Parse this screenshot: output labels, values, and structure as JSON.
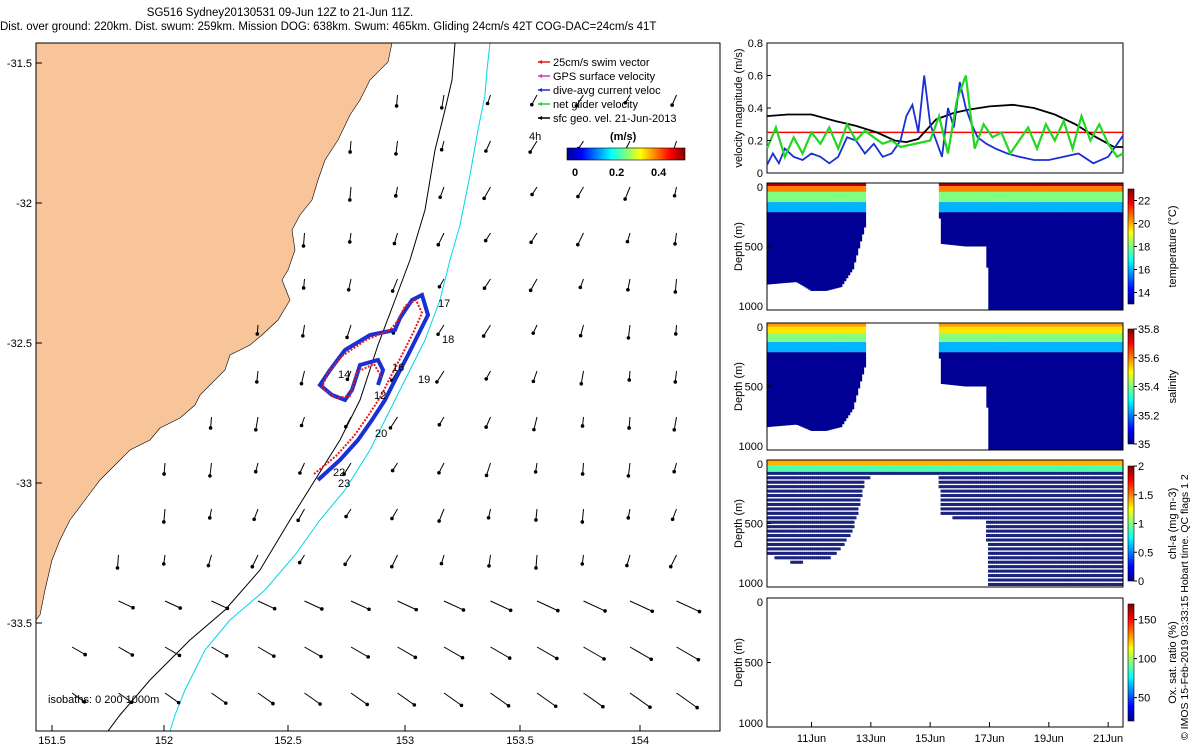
{
  "header": {
    "title_line1": "SG516 Sydney20130531 09-Jun 12Z to 21-Jun 11Z.",
    "title_line2": "Dist. over ground: 220km. Dist. swum: 259km. Mission DOG: 638km. Swum: 465km. Gliding 24cm/s 42T COG-DAC=24cm/s 41T"
  },
  "credit": "© IMOS 15-Feb-2019 03:33:15 Hobart time. QC flags 1  2",
  "map": {
    "legend": [
      {
        "label": "25cm/s swim vector",
        "color": "#e8191b"
      },
      {
        "label": "GPS surface velocity",
        "color": "#d733d7"
      },
      {
        "label": "dive-avg current veloc",
        "color": "#1a2fd4"
      },
      {
        "label": "net glider velocity",
        "color": "#22d622"
      },
      {
        "label": "sfc geo. vel. 21-Jun-2013",
        "color": "#000000"
      }
    ],
    "tag_4h": "4h",
    "colorbar": {
      "unit": "(m/s)",
      "ticks": [
        "0",
        "0.2",
        "0.4"
      ]
    },
    "isobaths_label": "isobaths: 0   200  1000m",
    "x_ticks": [
      "151.5",
      "152",
      "152.5",
      "153",
      "153.5",
      "154"
    ],
    "y_ticks": [
      "-31.5",
      "-32",
      "-32.5",
      "-33",
      "-33.5"
    ],
    "day_labels": [
      "12",
      "14",
      "16",
      "17",
      "18",
      "19",
      "20",
      "22",
      "23"
    ],
    "colors": {
      "land": "#f8c59a",
      "coast_200m": "#000000",
      "isobath_1000m": "#00d8e8",
      "track_blue": "#1a2fd4",
      "track_red": "#e8191b"
    }
  },
  "chart_data": [
    {
      "type": "line",
      "title": "",
      "ylabel": "velocity magnitude (m/s)",
      "ylim": [
        0,
        0.8
      ],
      "yticks": [
        "0",
        "0.2",
        "0.4",
        "0.6",
        "0.8"
      ],
      "xlim": [
        9.5,
        21.5
      ],
      "reference_line": 0.25,
      "series": [
        {
          "color": "#000000",
          "x": [
            9.5,
            10.2,
            11,
            11.8,
            12.5,
            13.2,
            13.8,
            14.2,
            14.6,
            15.2,
            15.8,
            16.3,
            17,
            17.8,
            18.5,
            19.2,
            19.9,
            20.6,
            21.2,
            21.5
          ],
          "y": [
            0.35,
            0.36,
            0.36,
            0.32,
            0.29,
            0.25,
            0.2,
            0.19,
            0.21,
            0.33,
            0.37,
            0.39,
            0.41,
            0.42,
            0.4,
            0.36,
            0.3,
            0.22,
            0.16,
            0.16
          ]
        },
        {
          "color": "#1a2fd4",
          "x": [
            9.5,
            9.7,
            9.9,
            10.1,
            10.4,
            10.7,
            11,
            11.3,
            11.6,
            11.9,
            12.2,
            12.5,
            12.8,
            13.1,
            13.4,
            13.7,
            14,
            14.2,
            14.4,
            14.6,
            14.8,
            15,
            15.2,
            15.4,
            15.6,
            15.8,
            16,
            16.2,
            16.4,
            16.6,
            16.9,
            17.2,
            17.6,
            18,
            18.5,
            19,
            19.5,
            20,
            20.5,
            21,
            21.5
          ],
          "y": [
            0.05,
            0.12,
            0.06,
            0.15,
            0.1,
            0.08,
            0.12,
            0.1,
            0.06,
            0.1,
            0.22,
            0.2,
            0.12,
            0.18,
            0.1,
            0.12,
            0.2,
            0.35,
            0.42,
            0.25,
            0.6,
            0.3,
            0.2,
            0.1,
            0.4,
            0.28,
            0.56,
            0.4,
            0.3,
            0.22,
            0.18,
            0.15,
            0.12,
            0.1,
            0.08,
            0.08,
            0.1,
            0.12,
            0.06,
            0.1,
            0.23
          ]
        },
        {
          "color": "#22d622",
          "x": [
            9.5,
            9.8,
            10.1,
            10.4,
            10.7,
            11,
            11.3,
            11.6,
            11.9,
            12.2,
            12.5,
            12.8,
            13.1,
            13.4,
            13.7,
            14,
            15,
            15.3,
            15.6,
            15.9,
            16.2,
            16.5,
            16.8,
            17.1,
            17.4,
            17.7,
            18,
            18.3,
            18.6,
            18.9,
            19.2,
            19.5,
            19.8,
            20.1,
            20.4,
            20.7,
            21,
            21.3,
            21.5
          ],
          "y": [
            0.15,
            0.28,
            0.1,
            0.22,
            0.12,
            0.25,
            0.18,
            0.28,
            0.15,
            0.3,
            0.2,
            0.26,
            0.22,
            0.18,
            0.2,
            0.16,
            0.2,
            0.35,
            0.12,
            0.45,
            0.6,
            0.15,
            0.3,
            0.22,
            0.25,
            0.12,
            0.2,
            0.28,
            0.15,
            0.3,
            0.2,
            0.32,
            0.15,
            0.35,
            0.2,
            0.3,
            0.18,
            0.1,
            0.12
          ]
        }
      ]
    },
    {
      "type": "heatmap",
      "ylabel": "Depth (m)",
      "ylim": [
        1000,
        0
      ],
      "yticks": [
        "0",
        "500",
        "1000"
      ],
      "colorbar_label": "temperature (°C)",
      "colorbar_range": [
        13,
        23
      ],
      "colorbar_ticks": [
        "14",
        "16",
        "18",
        "20",
        "22"
      ],
      "surface_value": 22.5,
      "max_depth": [
        [
          9.5,
          800
        ],
        [
          10.5,
          780
        ],
        [
          11,
          850
        ],
        [
          11.5,
          850
        ],
        [
          12,
          820
        ],
        [
          12.4,
          680
        ],
        [
          12.8,
          350
        ],
        [
          13.1,
          180
        ],
        [
          15.3,
          180
        ],
        [
          15.4,
          480
        ],
        [
          16.2,
          500
        ],
        [
          16.9,
          500
        ],
        [
          17,
          1000
        ],
        [
          21.5,
          1000
        ]
      ],
      "no_data": [
        [
          12.8,
          15.3
        ]
      ]
    },
    {
      "type": "heatmap",
      "ylabel": "Depth (m)",
      "ylim": [
        1000,
        0
      ],
      "yticks": [
        "0",
        "500",
        "1000"
      ],
      "colorbar_label": "salinity",
      "colorbar_range": [
        35.0,
        35.8
      ],
      "colorbar_ticks": [
        "35",
        "35.2",
        "35.4",
        "35.6",
        "35.8"
      ],
      "surface_value": 35.6,
      "max_depth": [
        [
          9.5,
          820
        ],
        [
          10.5,
          800
        ],
        [
          11,
          850
        ],
        [
          11.5,
          850
        ],
        [
          12,
          820
        ],
        [
          12.4,
          680
        ],
        [
          12.8,
          350
        ],
        [
          13.1,
          180
        ],
        [
          15.3,
          180
        ],
        [
          15.4,
          480
        ],
        [
          16.2,
          500
        ],
        [
          16.9,
          500
        ],
        [
          17,
          1000
        ],
        [
          21.5,
          1000
        ]
      ],
      "no_data": [
        [
          12.8,
          15.3
        ]
      ]
    },
    {
      "type": "scatter",
      "ylabel": "Depth (m)",
      "ylim": [
        1000,
        0
      ],
      "yticks": [
        "0",
        "500",
        "1000"
      ],
      "colorbar_label": "chl-a (mg m-3)",
      "colorbar_range": [
        0,
        2
      ],
      "colorbar_ticks": [
        "0",
        "0.5",
        "1",
        "1.5",
        "2"
      ],
      "max_depth": [
        [
          9.5,
          750
        ],
        [
          10.5,
          820
        ],
        [
          11,
          780
        ],
        [
          11.5,
          800
        ],
        [
          12,
          700
        ],
        [
          12.4,
          550
        ],
        [
          12.8,
          160
        ],
        [
          13.1,
          120
        ],
        [
          15.3,
          120
        ],
        [
          15.4,
          430
        ],
        [
          16.2,
          480
        ],
        [
          16.9,
          460
        ],
        [
          17,
          1000
        ],
        [
          21.5,
          1000
        ]
      ]
    },
    {
      "type": "heatmap",
      "ylabel": "Depth (m)",
      "ylim": [
        1000,
        0
      ],
      "yticks": [
        "0",
        "500",
        "1000"
      ],
      "colorbar_label": "Ox. sat. ratio (%)",
      "colorbar_range": [
        20,
        170
      ],
      "colorbar_ticks": [
        "50",
        "100",
        "150"
      ],
      "x_ticks": [
        "11Jun",
        "13Jun",
        "15Jun",
        "17Jun",
        "19Jun",
        "21Jun"
      ]
    }
  ]
}
